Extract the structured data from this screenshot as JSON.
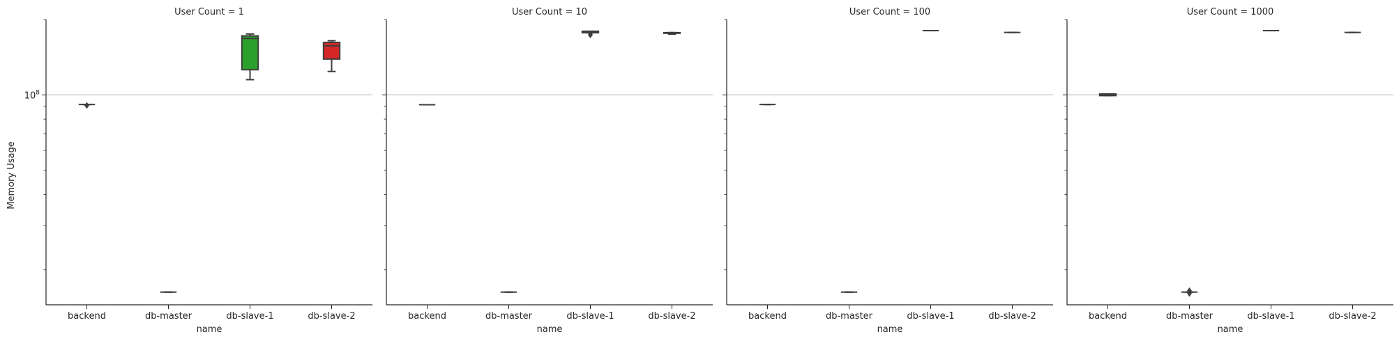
{
  "chart_data": {
    "type": "box",
    "y_scale": "log",
    "ylabel": "Memory Usage",
    "xlabel": "name",
    "categories": [
      "backend",
      "db-master",
      "db-slave-1",
      "db-slave-2"
    ],
    "colors": {
      "backend": "#1f77b4",
      "db-master": "#ff7f0e",
      "db-slave-1": "#2ca02c",
      "db-slave-2": "#d62728"
    },
    "ylim": [
      14500000,
      200000000
    ],
    "ytick_major": {
      "value": 100000000,
      "label": "10^8"
    },
    "ytick_minor": [
      20000000,
      30000000,
      40000000,
      50000000,
      60000000,
      70000000,
      80000000,
      90000000,
      200000000
    ],
    "grid_y_major": true,
    "panels": [
      {
        "title": "User Count = 1",
        "boxes": [
          {
            "category": "backend",
            "whislo": 91500000,
            "q1": 91500000,
            "med": 91500000,
            "q3": 91500000,
            "whishi": 91500000,
            "fliers": [
              90700000
            ]
          },
          {
            "category": "db-master",
            "whislo": 16300000,
            "q1": 16300000,
            "med": 16300000,
            "q3": 16300000,
            "whishi": 16300000,
            "fliers": []
          },
          {
            "category": "db-slave-1",
            "whislo": 115000000,
            "q1": 126000000,
            "med": 168000000,
            "q3": 172000000,
            "whishi": 175000000,
            "fliers": []
          },
          {
            "category": "db-slave-2",
            "whislo": 124000000,
            "q1": 139000000,
            "med": 157000000,
            "q3": 162000000,
            "whishi": 164500000,
            "fliers": []
          }
        ]
      },
      {
        "title": "User Count = 10",
        "boxes": [
          {
            "category": "backend",
            "whislo": 91300000,
            "q1": 91300000,
            "med": 91300000,
            "q3": 91300000,
            "whishi": 91300000,
            "fliers": []
          },
          {
            "category": "db-master",
            "whislo": 16300000,
            "q1": 16300000,
            "med": 16300000,
            "q3": 16300000,
            "whishi": 16300000,
            "fliers": []
          },
          {
            "category": "db-slave-1",
            "whislo": 177000000,
            "q1": 177000000,
            "med": 178500000,
            "q3": 179500000,
            "whishi": 179500000,
            "fliers": [
              173600000,
              174200000
            ]
          },
          {
            "category": "db-slave-2",
            "whislo": 174700000,
            "q1": 176200000,
            "med": 176800000,
            "q3": 177200000,
            "whishi": 177400000,
            "fliers": []
          }
        ]
      },
      {
        "title": "User Count = 100",
        "boxes": [
          {
            "category": "backend",
            "whislo": 91500000,
            "q1": 91500000,
            "med": 91500000,
            "q3": 91500000,
            "whishi": 91500000,
            "fliers": []
          },
          {
            "category": "db-master",
            "whislo": 16300000,
            "q1": 16300000,
            "med": 16300000,
            "q3": 16300000,
            "whishi": 16300000,
            "fliers": []
          },
          {
            "category": "db-slave-1",
            "whislo": 180500000,
            "q1": 180500000,
            "med": 180500000,
            "q3": 180500000,
            "whishi": 180500000,
            "fliers": []
          },
          {
            "category": "db-slave-2",
            "whislo": 177500000,
            "q1": 177500000,
            "med": 177500000,
            "q3": 177500000,
            "whishi": 177500000,
            "fliers": []
          }
        ]
      },
      {
        "title": "User Count = 1000",
        "boxes": [
          {
            "category": "backend",
            "whislo": 99300000,
            "q1": 99300000,
            "med": 100000000,
            "q3": 100800000,
            "whishi": 100800000,
            "fliers": []
          },
          {
            "category": "db-master",
            "whislo": 16300000,
            "q1": 16300000,
            "med": 16300000,
            "q3": 16300000,
            "whishi": 16300000,
            "fliers": [
              16100000,
              16500000
            ]
          },
          {
            "category": "db-slave-1",
            "whislo": 180500000,
            "q1": 180500000,
            "med": 180500000,
            "q3": 180500000,
            "whishi": 180500000,
            "fliers": []
          },
          {
            "category": "db-slave-2",
            "whislo": 177500000,
            "q1": 177500000,
            "med": 177500000,
            "q3": 177500000,
            "whishi": 177500000,
            "fliers": []
          }
        ]
      }
    ]
  }
}
